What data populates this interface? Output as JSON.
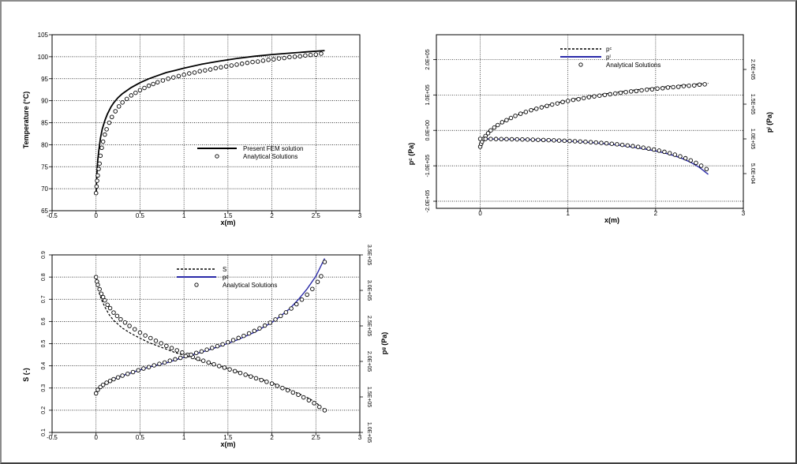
{
  "chart_data": [
    {
      "type": "line",
      "xlabel": "x(m)",
      "ylabel": "Temperature (°C)",
      "xlim": [
        -0.5,
        3
      ],
      "ylim": [
        65,
        105
      ],
      "xticks": [
        "-0.5",
        "0",
        "0.5",
        "1",
        "1.5",
        "2",
        "2.5",
        "3"
      ],
      "yticks": [
        "65",
        "70",
        "75",
        "80",
        "85",
        "90",
        "95",
        "100",
        "105"
      ],
      "grid": true,
      "legend_position": "center-right",
      "series": [
        {
          "name": "Present FEM solution",
          "style": "solid",
          "color": "#000000",
          "x": [
            0,
            0.005,
            0.01,
            0.02,
            0.03,
            0.05,
            0.07,
            0.1,
            0.13,
            0.17,
            0.2,
            0.25,
            0.3,
            0.4,
            0.5,
            0.6,
            0.7,
            0.8,
            0.9,
            1.0,
            1.2,
            1.4,
            1.6,
            1.8,
            2.0,
            2.2,
            2.4,
            2.6
          ],
          "y": [
            68.5,
            71.5,
            73.5,
            76.5,
            78.5,
            81.5,
            83.5,
            85.5,
            87.0,
            88.6,
            89.5,
            90.7,
            91.6,
            93.0,
            94.1,
            95.0,
            95.7,
            96.4,
            96.9,
            97.4,
            98.3,
            99.0,
            99.6,
            100.1,
            100.5,
            100.8,
            101.1,
            101.4
          ]
        },
        {
          "name": "Analytical Solutions",
          "style": "circle",
          "color": "#000000",
          "x": [
            0,
            0.006,
            0.012,
            0.02,
            0.03,
            0.04,
            0.05,
            0.065,
            0.08,
            0.1,
            0.12,
            0.15,
            0.18,
            0.22,
            0.26,
            0.3,
            0.35,
            0.4,
            0.45,
            0.5,
            0.55,
            0.6,
            0.65,
            0.7,
            0.76,
            0.82,
            0.88,
            0.94,
            1.0,
            1.06,
            1.12,
            1.18,
            1.24,
            1.3,
            1.36,
            1.42,
            1.48,
            1.54,
            1.6,
            1.66,
            1.72,
            1.78,
            1.84,
            1.9,
            1.96,
            2.02,
            2.08,
            2.14,
            2.2,
            2.26,
            2.32,
            2.38,
            2.44,
            2.5,
            2.56
          ],
          "y": [
            69.0,
            70.5,
            71.8,
            73.0,
            74.5,
            75.7,
            77.5,
            79.3,
            80.7,
            82.3,
            83.5,
            85.0,
            86.3,
            87.6,
            88.7,
            89.6,
            90.4,
            91.2,
            91.8,
            92.4,
            92.9,
            93.4,
            93.8,
            94.2,
            94.6,
            95.0,
            95.3,
            95.6,
            95.9,
            96.2,
            96.4,
            96.7,
            96.9,
            97.1,
            97.4,
            97.6,
            97.8,
            98.0,
            98.2,
            98.4,
            98.6,
            98.8,
            98.9,
            99.1,
            99.3,
            99.4,
            99.6,
            99.7,
            99.9,
            100.0,
            100.1,
            100.3,
            100.4,
            100.5,
            100.7
          ]
        }
      ]
    },
    {
      "type": "line",
      "xlabel": "x(m)",
      "ylabel": "pᶜ (Pa)",
      "ylabel_right": "pˡ (Pa)",
      "xlim": [
        -0.5,
        3
      ],
      "ylim": [
        -220000.0,
        270000.0
      ],
      "ylim_right": [
        0,
        250000.0
      ],
      "xticks": [
        "0",
        "1",
        "2",
        "3"
      ],
      "yticks": [
        "-2.0E+05",
        "-1.0E+05",
        "0.0E+00",
        "1.0E+05",
        "2.0E+05"
      ],
      "yticks_right": [
        "5.0E+04",
        "1.0E+05",
        "1.5E+05",
        "2.0E+05"
      ],
      "grid": true,
      "legend_position": "top-center",
      "series": [
        {
          "name": "pᶜ",
          "style": "dashed",
          "color": "#000000",
          "axis": "left",
          "x": [
            0,
            0.01,
            0.03,
            0.06,
            0.1,
            0.15,
            0.2,
            0.3,
            0.4,
            0.5,
            0.6,
            0.7,
            0.8,
            0.9,
            1.0,
            1.2,
            1.4,
            1.6,
            1.8,
            2.0,
            2.2,
            2.4,
            2.6
          ],
          "y": [
            -48000.0,
            -40000.0,
            -30000.0,
            -18000.0,
            -6000.0,
            5000.0,
            14000.0,
            29000.0,
            41000.0,
            51000.0,
            59000.0,
            66000.0,
            73000.0,
            79000.0,
            85000.0,
            94000.0,
            102000.0,
            109000.0,
            115000.0,
            120000.0,
            125000.0,
            129000.0,
            133000.0
          ]
        },
        {
          "name": "pˡ",
          "style": "solid",
          "color": "#2a2aa8",
          "axis": "right",
          "x": [
            0,
            0.2,
            0.4,
            0.6,
            0.8,
            1.0,
            1.2,
            1.4,
            1.6,
            1.8,
            2.0,
            2.1,
            2.2,
            2.3,
            2.4,
            2.5,
            2.6
          ],
          "y": [
            100000.0,
            99700,
            99300,
            98700,
            97900,
            96800,
            95300,
            93300,
            90700,
            87200,
            82600,
            79800,
            76300,
            71900,
            66200,
            58900,
            49000
          ]
        },
        {
          "name": "Analytical Solutions",
          "style": "circle",
          "color": "#000000",
          "axis": "left",
          "x": [
            0,
            0.01,
            0.02,
            0.04,
            0.06,
            0.09,
            0.12,
            0.16,
            0.2,
            0.25,
            0.3,
            0.35,
            0.4,
            0.46,
            0.52,
            0.58,
            0.64,
            0.7,
            0.76,
            0.82,
            0.88,
            0.94,
            1.0,
            1.06,
            1.12,
            1.18,
            1.24,
            1.3,
            1.36,
            1.42,
            1.48,
            1.54,
            1.6,
            1.66,
            1.72,
            1.78,
            1.84,
            1.9,
            1.96,
            2.02,
            2.08,
            2.14,
            2.2,
            2.26,
            2.32,
            2.38,
            2.44,
            2.5,
            2.56
          ],
          "y": [
            -46000.0,
            -38000.0,
            -32000.0,
            -24000.0,
            -16000.0,
            -8000.0,
            0,
            8000.0,
            15000.0,
            23000.0,
            29000.0,
            35000.0,
            41000.0,
            47000.0,
            52000.0,
            57000.0,
            61000.0,
            65000.0,
            69000.0,
            73000.0,
            76000.0,
            80000.0,
            83000.0,
            86000.0,
            88000.0,
            91000.0,
            94000.0,
            96000.0,
            98000.0,
            100000.0,
            102000.0,
            104000.0,
            106000.0,
            108000.0,
            110000.0,
            111000.0,
            113000.0,
            115000.0,
            116000.0,
            118000.0,
            119000.0,
            121000.0,
            122000.0,
            123000.0,
            125000.0,
            126000.0,
            127000.0,
            129000.0,
            130000.0
          ]
        },
        {
          "name": "Analytical Solutions",
          "style": "circle",
          "color": "#000000",
          "axis": "right",
          "legend": false,
          "x": [
            0,
            0.06,
            0.12,
            0.18,
            0.24,
            0.3,
            0.36,
            0.42,
            0.48,
            0.54,
            0.6,
            0.66,
            0.72,
            0.78,
            0.84,
            0.9,
            0.96,
            1.02,
            1.08,
            1.14,
            1.2,
            1.26,
            1.32,
            1.38,
            1.44,
            1.5,
            1.56,
            1.62,
            1.68,
            1.74,
            1.8,
            1.86,
            1.92,
            1.98,
            2.04,
            2.1,
            2.16,
            2.22,
            2.28,
            2.34,
            2.4,
            2.46,
            2.52,
            2.58
          ],
          "y": [
            100000,
            99950,
            99880,
            99800,
            99700,
            99600,
            99480,
            99350,
            99200,
            99030,
            98850,
            98650,
            98430,
            98190,
            97930,
            97640,
            97330,
            96990,
            96620,
            96220,
            95780,
            95310,
            94790,
            94230,
            93610,
            92940,
            92210,
            91400,
            90520,
            89560,
            88500,
            87330,
            86050,
            84630,
            83060,
            81330,
            79400,
            77240,
            74820,
            72100,
            69000,
            65450,
            61350,
            56500
          ]
        }
      ]
    },
    {
      "type": "line",
      "xlabel": "x(m)",
      "ylabel": "S (-)",
      "ylabel_right": "pᵍ (Pa)",
      "xlim": [
        -0.5,
        3
      ],
      "ylim": [
        0.1,
        0.9
      ],
      "ylim_right": [
        100000.0,
        350000.0
      ],
      "xticks": [
        "-0.5",
        "0",
        "0.5",
        "1",
        "1.5",
        "2",
        "2.5",
        "3"
      ],
      "yticks": [
        "0.1",
        "0.2",
        "0.3",
        "0.4",
        "0.5",
        "0.6",
        "0.7",
        "0.8",
        "0.9"
      ],
      "yticks_right": [
        "1.0E+05",
        "1.5E+05",
        "2.0E+05",
        "2.5E+05",
        "3.0E+05",
        "3.5E+05"
      ],
      "grid": true,
      "legend_position": "top-center",
      "series": [
        {
          "name": "S",
          "style": "dashed",
          "color": "#000000",
          "axis": "left",
          "x": [
            0,
            0.01,
            0.03,
            0.06,
            0.1,
            0.15,
            0.2,
            0.3,
            0.4,
            0.5,
            0.6,
            0.7,
            0.8,
            0.9,
            1.0,
            1.2,
            1.4,
            1.6,
            1.8,
            2.0,
            2.2,
            2.4,
            2.5,
            2.6
          ],
          "y": [
            0.8,
            0.77,
            0.735,
            0.7,
            0.665,
            0.63,
            0.605,
            0.57,
            0.545,
            0.525,
            0.505,
            0.49,
            0.475,
            0.46,
            0.448,
            0.422,
            0.4,
            0.375,
            0.35,
            0.323,
            0.293,
            0.258,
            0.235,
            0.2
          ]
        },
        {
          "name": "pᵍ",
          "style": "solid",
          "color": "#2a2aa8",
          "axis": "right",
          "x": [
            0,
            0.05,
            0.1,
            0.2,
            0.3,
            0.4,
            0.5,
            0.6,
            0.7,
            0.8,
            0.9,
            1.0,
            1.2,
            1.4,
            1.6,
            1.8,
            2.0,
            2.1,
            2.2,
            2.3,
            2.4,
            2.5,
            2.6
          ],
          "y": [
            155000,
            163000,
            168000,
            175000,
            180000,
            184000,
            188000,
            192000,
            195000,
            198000,
            202000,
            206000,
            213000,
            221000,
            230000,
            241000,
            255000,
            264000,
            274000,
            287000,
            302000,
            320000,
            345000
          ]
        },
        {
          "name": "Analytical Solutions",
          "style": "circle",
          "color": "#000000",
          "axis": "left",
          "x": [
            0,
            0.01,
            0.02,
            0.04,
            0.06,
            0.08,
            0.1,
            0.13,
            0.16,
            0.2,
            0.24,
            0.28,
            0.33,
            0.38,
            0.44,
            0.5,
            0.56,
            0.62,
            0.68,
            0.74,
            0.8,
            0.86,
            0.92,
            0.98,
            1.04,
            1.1,
            1.16,
            1.22,
            1.28,
            1.34,
            1.4,
            1.46,
            1.52,
            1.58,
            1.64,
            1.7,
            1.76,
            1.82,
            1.88,
            1.94,
            2.0,
            2.06,
            2.12,
            2.18,
            2.24,
            2.3,
            2.36,
            2.42,
            2.48,
            2.54,
            2.6
          ],
          "y": [
            0.8,
            0.78,
            0.765,
            0.745,
            0.725,
            0.71,
            0.695,
            0.675,
            0.66,
            0.64,
            0.625,
            0.61,
            0.595,
            0.58,
            0.565,
            0.55,
            0.537,
            0.525,
            0.513,
            0.502,
            0.49,
            0.48,
            0.47,
            0.46,
            0.45,
            0.44,
            0.432,
            0.423,
            0.415,
            0.407,
            0.399,
            0.392,
            0.384,
            0.376,
            0.368,
            0.36,
            0.352,
            0.344,
            0.336,
            0.328,
            0.32,
            0.31,
            0.3,
            0.29,
            0.28,
            0.27,
            0.258,
            0.245,
            0.232,
            0.215,
            0.2
          ]
        },
        {
          "name": "Analytical Solutions",
          "style": "circle",
          "color": "#000000",
          "axis": "right",
          "legend": false,
          "x": [
            0,
            0.02,
            0.05,
            0.08,
            0.12,
            0.16,
            0.2,
            0.25,
            0.3,
            0.36,
            0.42,
            0.48,
            0.54,
            0.6,
            0.66,
            0.72,
            0.78,
            0.84,
            0.9,
            0.96,
            1.02,
            1.08,
            1.14,
            1.2,
            1.26,
            1.32,
            1.38,
            1.44,
            1.5,
            1.56,
            1.62,
            1.68,
            1.74,
            1.8,
            1.86,
            1.92,
            1.98,
            2.04,
            2.1,
            2.16,
            2.22,
            2.28,
            2.34,
            2.4,
            2.46,
            2.52,
            2.56,
            2.6
          ],
          "y": [
            155000,
            160000,
            164000,
            167000,
            170000,
            172500,
            175000,
            177500,
            180000,
            182500,
            185000,
            187500,
            190000,
            192000,
            194500,
            196500,
            198500,
            201000,
            203000,
            205000,
            207500,
            209500,
            212000,
            214000,
            216500,
            219000,
            221500,
            224000,
            227000,
            230000,
            233000,
            236000,
            239500,
            243000,
            246500,
            250500,
            254500,
            259000,
            264000,
            269000,
            274500,
            280500,
            287000,
            294000,
            302000,
            312000,
            320000,
            340000
          ]
        }
      ]
    }
  ]
}
